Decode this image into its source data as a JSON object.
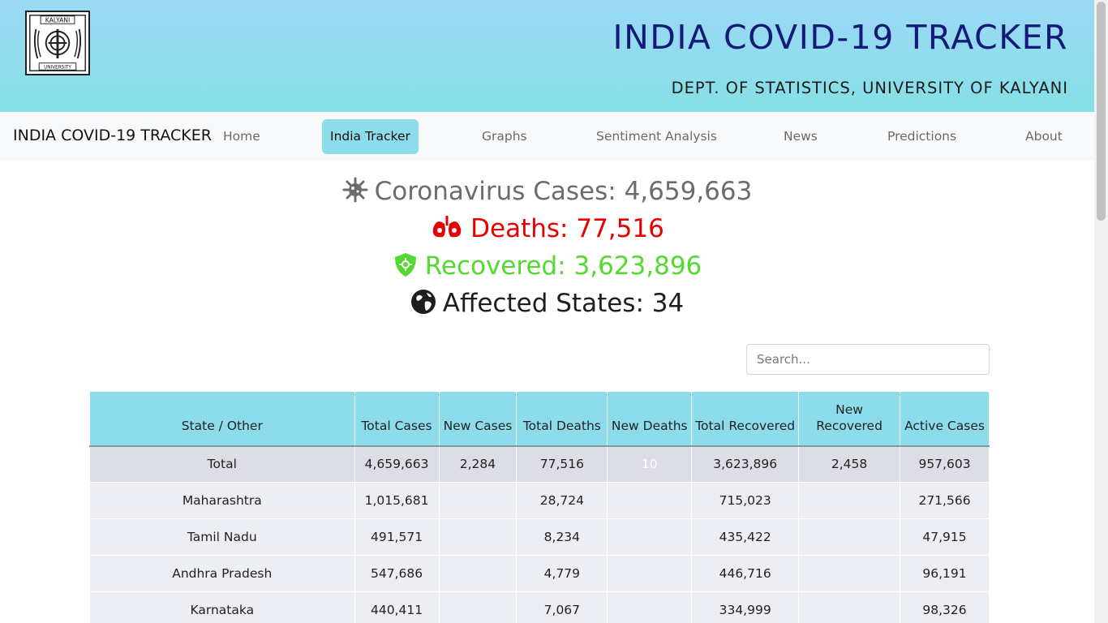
{
  "header": {
    "logo_text_top": "KALYANI",
    "logo_text_bottom": "UNIVERSITY",
    "title": "INDIA COVID-19 TRACKER",
    "subtitle": "DEPT. OF STATISTICS, UNIVERSITY OF KALYANI"
  },
  "nav": {
    "brand": "INDIA COVID-19 TRACKER",
    "items": [
      {
        "label": "Home"
      },
      {
        "label": "India Tracker"
      },
      {
        "label": "Graphs"
      },
      {
        "label": "Sentiment Analysis"
      },
      {
        "label": "News"
      },
      {
        "label": "Predictions"
      },
      {
        "label": "About"
      }
    ],
    "active_color": "#8ddcec"
  },
  "stats": {
    "cases": "Coronavirus Cases: 4,659,663",
    "deaths": "Deaths: 77,516",
    "recovered": "Recovered: 3,623,896",
    "states": "Affected States: 34",
    "icons": [
      "virus-icon",
      "lungs-virus-icon",
      "shield-virus-icon",
      "globe-icon"
    ],
    "colors": {
      "cases": "#6c6c6c",
      "deaths": "#e60000",
      "recovered": "#55d831",
      "states": "#1e1e1e"
    }
  },
  "search": {
    "placeholder": "Search..."
  },
  "table": {
    "headers": [
      "State / Other",
      "Total Cases",
      "New Cases",
      "Total Deaths",
      "New Deaths",
      "Total Recovered",
      "New Recovered",
      "Active Cases"
    ],
    "rows": [
      [
        "Total",
        "4,659,663",
        "2,284",
        "77,516",
        "10",
        "3,623,896",
        "2,458",
        "957,603"
      ],
      [
        "Maharashtra",
        "1,015,681",
        "",
        "28,724",
        "",
        "715,023",
        "",
        "271,566"
      ],
      [
        "Tamil Nadu",
        "491,571",
        "",
        "8,234",
        "",
        "435,422",
        "",
        "47,915"
      ],
      [
        "Andhra Pradesh",
        "547,686",
        "",
        "4,779",
        "",
        "446,716",
        "",
        "96,191"
      ],
      [
        "Karnataka",
        "440,411",
        "",
        "7,067",
        "",
        "334,999",
        "",
        "98,326"
      ]
    ],
    "header_color": "#8ddcec",
    "highlight_color": "#ff0000"
  }
}
